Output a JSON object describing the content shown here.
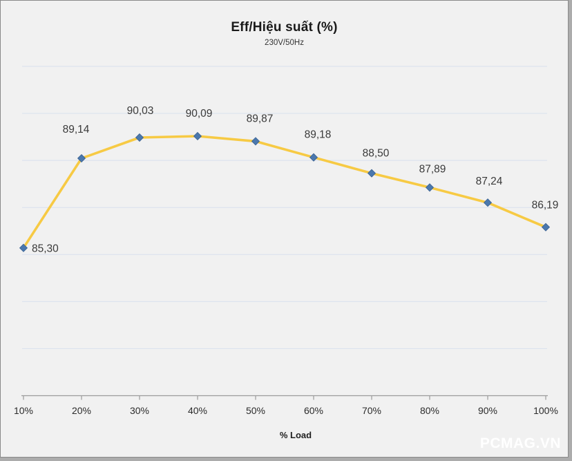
{
  "chart": {
    "title": "Eff/Hiệu suất (%)",
    "subtitle": "230V/50Hz",
    "xlabel": "% Load",
    "watermark": "PCMAG.VN"
  },
  "chart_data": {
    "type": "line",
    "title": "Eff/Hiệu suất (%)",
    "subtitle": "230V/50Hz",
    "xlabel": "% Load",
    "ylabel": "",
    "categories": [
      "10%",
      "20%",
      "30%",
      "40%",
      "50%",
      "60%",
      "70%",
      "80%",
      "90%",
      "100%"
    ],
    "series": [
      {
        "name": "Eff/Hiệu suất (%)",
        "values": [
          85.3,
          89.14,
          90.03,
          90.09,
          89.87,
          89.18,
          88.5,
          87.89,
          87.24,
          86.19
        ]
      }
    ],
    "data_labels": [
      "85,30",
      "89,14",
      "90,03",
      "90,09",
      "89,87",
      "89,18",
      "88,50",
      "87,89",
      "87,24",
      "86,19"
    ],
    "ylim": [
      78.97,
      93.08
    ],
    "grid": true,
    "legend_position": "none",
    "colors": {
      "line": "#F7CA44",
      "marker": "#4B78AD",
      "marker_edge": "#3A6191",
      "grid": "#DCE3EE",
      "axis": "#9B9B9B",
      "background": "#F1F1F1",
      "label_text": "#3A3A3A"
    }
  }
}
